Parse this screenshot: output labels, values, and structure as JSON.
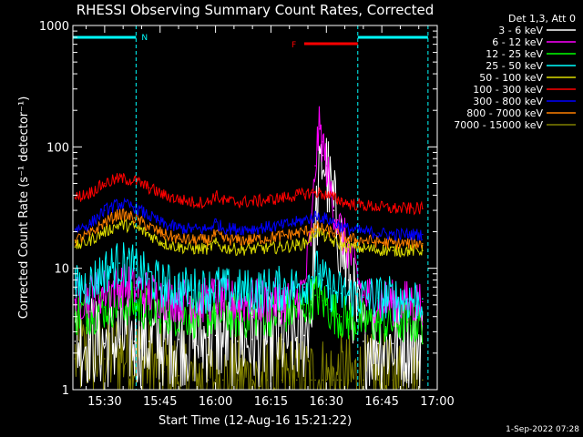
{
  "chart_data": {
    "type": "line",
    "title": "RHESSI Observing Summary Count Rates, Corrected",
    "xlabel": "Start Time (12-Aug-16 15:21:22)",
    "ylabel": "Corrected Count Rate (s⁻¹ detector⁻¹)",
    "y_scale": "log",
    "ylim": [
      1,
      1000
    ],
    "x_unit": "minutes after 15:00 UT",
    "xlim": [
      21.4,
      120
    ],
    "x_ticks": [
      {
        "value": 30,
        "label": "15:30"
      },
      {
        "value": 45,
        "label": "15:45"
      },
      {
        "value": 60,
        "label": "16:00"
      },
      {
        "value": 75,
        "label": "16:15"
      },
      {
        "value": 90,
        "label": "16:30"
      },
      {
        "value": 105,
        "label": "16:45"
      },
      {
        "value": 120,
        "label": "17:00"
      }
    ],
    "y_ticks": [
      {
        "value": 1,
        "label": "1"
      },
      {
        "value": 10,
        "label": "10"
      },
      {
        "value": 100,
        "label": "100"
      },
      {
        "value": 1000,
        "label": "1000"
      }
    ],
    "legend_title": "Det 1,3, Att 0",
    "legend_position": "outside-top-right",
    "x": [
      22,
      26,
      30,
      34,
      38,
      42,
      46,
      50,
      54,
      58,
      60,
      62,
      66,
      70,
      74,
      78,
      82,
      84,
      86,
      87,
      88,
      89,
      90,
      91,
      92,
      93,
      94,
      96,
      100,
      104,
      108,
      112,
      116
    ],
    "series": [
      {
        "name": "3 - 6 keV",
        "color": "#ffffff",
        "values": [
          2.5,
          2.6,
          2.4,
          2.6,
          2.5,
          2.5,
          2.5,
          2.6,
          2.5,
          2.7,
          2.8,
          2.6,
          2.5,
          2.6,
          2.5,
          2.6,
          2.7,
          2.8,
          5,
          20,
          45,
          85,
          65,
          42,
          30,
          22,
          16,
          8,
          2.5,
          2.4,
          2.4,
          2.5,
          2.4
        ]
      },
      {
        "name": "6 - 12 keV",
        "color": "#ff00ff",
        "values": [
          5.5,
          6.0,
          6.5,
          7.2,
          7.0,
          6.2,
          5.8,
          5.5,
          5.4,
          5.4,
          5.8,
          5.4,
          5.2,
          5.3,
          5.3,
          5.4,
          5.6,
          7,
          20,
          70,
          140,
          110,
          70,
          45,
          32,
          25,
          20,
          14,
          6.0,
          5.4,
          5.2,
          5.2,
          5.3
        ]
      },
      {
        "name": "12 - 25 keV",
        "color": "#00ff00",
        "values": [
          4.2,
          4.4,
          4.8,
          5.2,
          5.0,
          4.6,
          4.4,
          4.2,
          4.1,
          4.1,
          4.3,
          4.1,
          4.0,
          4.1,
          4.2,
          4.3,
          4.6,
          5.0,
          5.6,
          6.0,
          5.8,
          5.4,
          5.0,
          4.6,
          4.4,
          4.2,
          4.0,
          3.8,
          3.6,
          3.6,
          3.6,
          3.6,
          3.6
        ]
      },
      {
        "name": "25 - 50 keV",
        "color": "#00ffff",
        "values": [
          6.8,
          7.5,
          9.5,
          11,
          10,
          8.2,
          7.2,
          6.8,
          6.6,
          6.6,
          7.2,
          6.6,
          6.4,
          6.5,
          6.6,
          6.8,
          7.0,
          7.4,
          8.5,
          9.5,
          9.0,
          8.0,
          7.2,
          6.8,
          6.5,
          6.3,
          6.2,
          6.0,
          5.8,
          5.7,
          5.6,
          5.6,
          5.6
        ]
      },
      {
        "name": "50 - 100 keV",
        "color": "#dcdc00",
        "values": [
          15,
          17,
          20,
          23,
          22,
          19,
          16,
          15,
          14.5,
          14.5,
          16,
          14.8,
          14.3,
          14.4,
          14.6,
          15,
          15.5,
          16,
          18,
          20,
          20,
          19,
          18,
          17,
          16.5,
          16,
          15.5,
          15,
          14.5,
          14.2,
          14,
          14,
          14
        ]
      },
      {
        "name": "100 - 300 keV",
        "color": "#ff0000",
        "values": [
          38,
          42,
          50,
          55,
          53,
          46,
          40,
          37,
          35,
          35,
          40,
          36,
          35,
          35.5,
          36.5,
          38,
          40,
          41,
          42,
          42,
          42,
          41,
          40,
          39,
          38,
          37,
          36,
          34,
          33,
          32,
          31,
          31,
          31
        ]
      },
      {
        "name": "300 - 800 keV",
        "color": "#0000ff",
        "values": [
          21,
          23,
          30,
          34,
          32,
          27,
          23,
          21.5,
          21,
          21,
          24,
          21.5,
          21,
          21.2,
          21.8,
          22.5,
          24,
          25,
          26,
          27,
          27,
          26,
          25.5,
          25,
          24,
          23,
          22,
          21,
          20,
          19.5,
          19,
          19,
          19
        ]
      },
      {
        "name": "800 - 7000 keV",
        "color": "#ff8000",
        "values": [
          17,
          19,
          24,
          28,
          26,
          22,
          19,
          17.5,
          17,
          17,
          19,
          17.5,
          17,
          17.2,
          17.8,
          18.5,
          19.5,
          20,
          21,
          21.5,
          21.5,
          21,
          20.5,
          20,
          19.5,
          19,
          18.5,
          17.5,
          17,
          16.5,
          16,
          16,
          16
        ]
      },
      {
        "name": "7000 - 15000 keV",
        "color": "#808000",
        "values": [
          1.8,
          2.0,
          1.8,
          2.0,
          1.9,
          1.6,
          1.4,
          1.3,
          1.2,
          1.2,
          1.2,
          1.2,
          1.2,
          1.2,
          1.2,
          1.2,
          1.2,
          1.2,
          1.2,
          1.2,
          1.2,
          1.2,
          1.2,
          1.2,
          1.2,
          1.2,
          1.2,
          1.2,
          1.2,
          1.2,
          1.2,
          1.2,
          1.2
        ]
      }
    ],
    "annotations": [
      {
        "kind": "night",
        "label": "N",
        "x_start": 21.4,
        "x_end": 38.5,
        "color": "#00ffff"
      },
      {
        "kind": "night",
        "label": "",
        "x_start": 98.5,
        "x_end": 117.5,
        "color": "#00ffff"
      },
      {
        "kind": "flare",
        "label": "F",
        "x_start": 84,
        "x_end": 98.5,
        "color": "#ff0000"
      }
    ],
    "footer_timestamp": "1-Sep-2022 07:28",
    "colors": {
      "background": "#000000",
      "axes": "#ffffff"
    }
  }
}
